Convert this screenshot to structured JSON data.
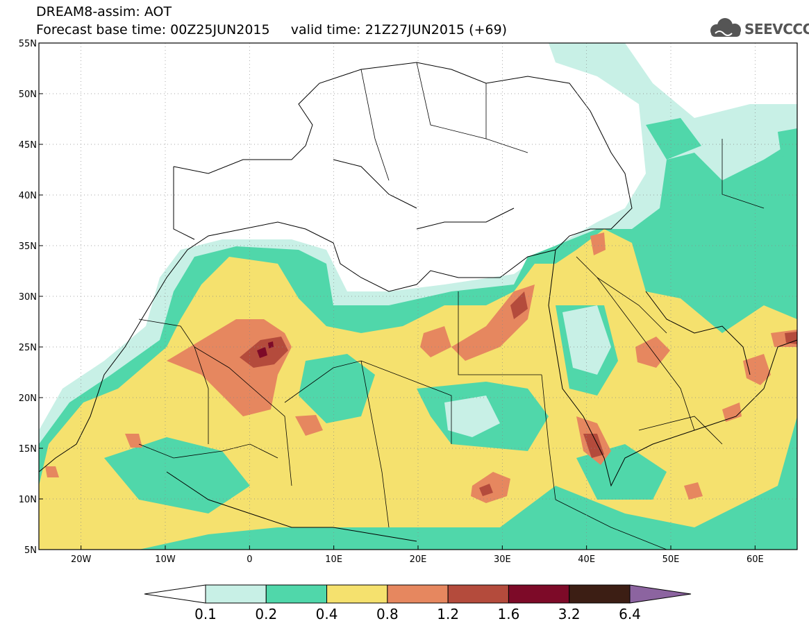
{
  "header": {
    "title_line1": "DREAM8-assim: AOT",
    "title_line2": "Forecast base time: 00Z25JUN2015     valid time: 21Z27JUN2015 (+69)",
    "logo_text": "SEEVCCC"
  },
  "map": {
    "lon_range": [
      -25,
      65
    ],
    "lat_range": [
      5,
      55
    ],
    "lat_ticks": [
      "5N",
      "10N",
      "15N",
      "20N",
      "25N",
      "30N",
      "35N",
      "40N",
      "45N",
      "50N",
      "55N"
    ],
    "lon_ticks": [
      "20W",
      "10W",
      "0",
      "10E",
      "20E",
      "30E",
      "40E",
      "50E",
      "60E"
    ],
    "lat_values": [
      5,
      10,
      15,
      20,
      25,
      30,
      35,
      40,
      45,
      50,
      55
    ],
    "lon_values": [
      -20,
      -10,
      0,
      10,
      20,
      30,
      40,
      50,
      60
    ]
  },
  "colorbar": {
    "labels": [
      "0.1",
      "0.2",
      "0.4",
      "0.8",
      "1.2",
      "1.6",
      "3.2",
      "6.4"
    ],
    "colors": [
      "#ffffff",
      "#c8f0e6",
      "#50d7aa",
      "#f5e16e",
      "#e6875f",
      "#b44b3c",
      "#7d0a28",
      "#3c1e14",
      "#8c64a0"
    ]
  }
}
